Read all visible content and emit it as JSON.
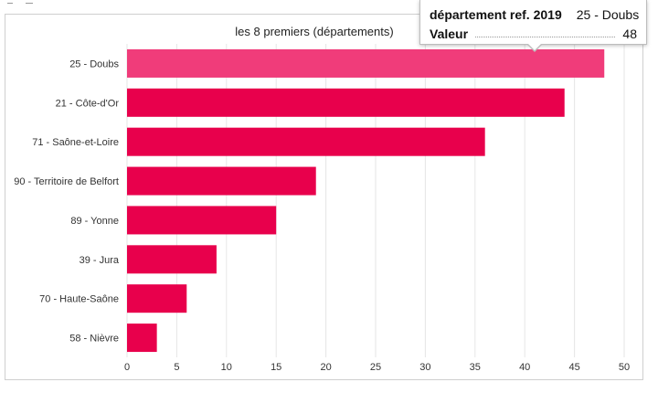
{
  "chart_data": {
    "type": "bar",
    "orientation": "horizontal",
    "title": "les 8 premiers (départements)",
    "categories": [
      "25 - Doubs",
      "21 - Côte-d'Or",
      "71 - Saône-et-Loire",
      "90 - Territoire de Belfort",
      "89 - Yonne",
      "39 - Jura",
      "70 - Haute-Saône",
      "58 - Nièvre"
    ],
    "values": [
      48,
      44,
      36,
      19,
      15,
      9,
      6,
      3
    ],
    "xlim": [
      0,
      50
    ],
    "xticks": [
      0,
      5,
      10,
      15,
      20,
      25,
      30,
      35,
      40,
      45,
      50
    ],
    "grid": true,
    "highlighted_index": 0
  },
  "colors": {
    "bar": "#e8004c",
    "bar_highlight": "#f03c7a",
    "grid": "#e6e6e6",
    "axis_text": "#333333"
  },
  "tooltip": {
    "label1": "département ref. 2019",
    "value1": "25 - Doubs",
    "label2": "Valeur",
    "value2": "48"
  }
}
